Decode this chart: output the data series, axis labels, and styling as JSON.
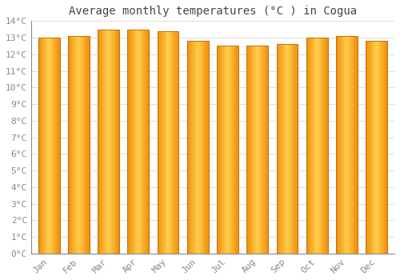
{
  "title": "Average monthly temperatures (°C ) in Cogua",
  "months": [
    "Jan",
    "Feb",
    "Mar",
    "Apr",
    "May",
    "Jun",
    "Jul",
    "Aug",
    "Sep",
    "Oct",
    "Nov",
    "Dec"
  ],
  "values": [
    13.0,
    13.1,
    13.5,
    13.5,
    13.4,
    12.8,
    12.5,
    12.5,
    12.6,
    13.0,
    13.1,
    12.8
  ],
  "bar_color_center": "#FFD050",
  "bar_color_edge": "#F0900A",
  "bar_color_bottom": "#E88000",
  "bar_edge_color": "#C07010",
  "background_color": "#FFFFFF",
  "grid_color": "#DDDDDD",
  "tick_color": "#888888",
  "ylim": [
    0,
    14
  ],
  "ytick_step": 1,
  "title_fontsize": 10,
  "tick_fontsize": 8,
  "font_family": "monospace"
}
